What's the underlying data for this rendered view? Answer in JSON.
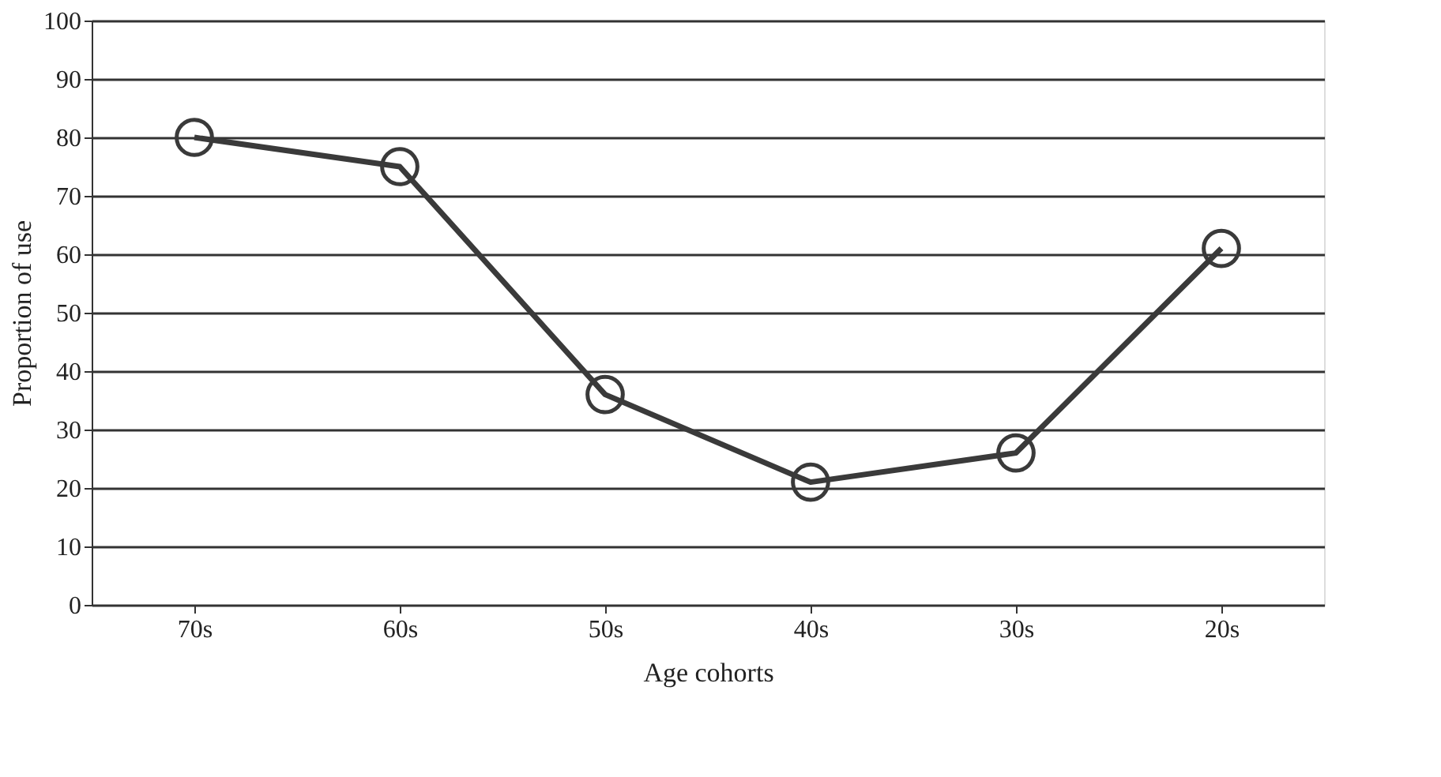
{
  "chart_data": {
    "type": "line",
    "xlabel": "Age cohorts",
    "ylabel": "Proportion of use",
    "categories": [
      "70s",
      "60s",
      "50s",
      "40s",
      "30s",
      "20s"
    ],
    "series": [
      {
        "color": "#3a3a3a",
        "values": [
          80,
          75,
          36,
          21,
          26,
          61
        ]
      }
    ],
    "ylim": [
      0,
      100
    ],
    "yticks": [
      0,
      10,
      20,
      30,
      40,
      50,
      60,
      70,
      80,
      90,
      100
    ],
    "grid": "y",
    "marker": "circle",
    "line_style": "solid"
  }
}
